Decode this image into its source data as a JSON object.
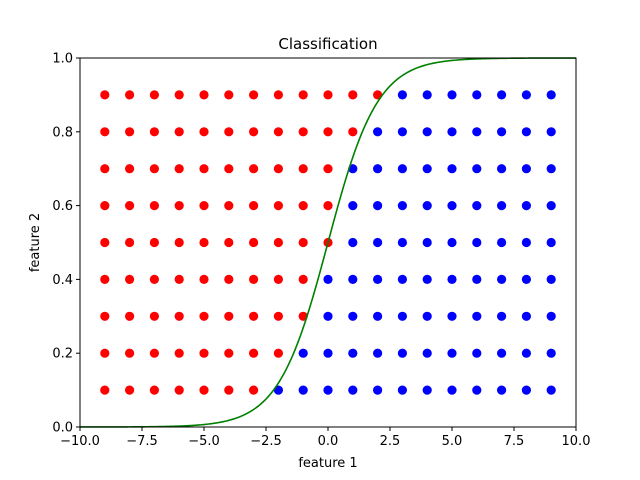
{
  "chart_data": {
    "type": "scatter",
    "title": "Classification",
    "xlabel": "feature 1",
    "ylabel": "feature 2",
    "xlim": [
      -10,
      10
    ],
    "ylim": [
      0,
      1
    ],
    "xticks": [
      -10,
      -7.5,
      -5,
      -2.5,
      0,
      2.5,
      5,
      7.5,
      10
    ],
    "xtick_labels": [
      "−10.0",
      "−7.5",
      "−5.0",
      "−2.5",
      "0.0",
      "2.5",
      "5.0",
      "7.5",
      "10.0"
    ],
    "yticks": [
      0,
      0.2,
      0.4,
      0.6,
      0.8,
      1.0
    ],
    "ytick_labels": [
      "0.0",
      "0.2",
      "0.4",
      "0.6",
      "0.8",
      "1.0"
    ],
    "grid": false,
    "x_grid": [
      -9,
      -8,
      -7,
      -6,
      -5,
      -4,
      -3,
      -2,
      -1,
      0,
      1,
      2,
      3,
      4,
      5,
      6,
      7,
      8,
      9
    ],
    "y_grid": [
      0.1,
      0.2,
      0.3,
      0.4,
      0.5,
      0.6,
      0.7,
      0.8,
      0.9
    ],
    "series": [
      {
        "class_rule": "y >= sigmoid(x)",
        "color": "#ff0000"
      },
      {
        "class_rule": "y < sigmoid(x)",
        "color": "#0000ff"
      }
    ],
    "curve": {
      "type": "sigmoid",
      "function": "1/(1+exp(-x))",
      "color": "#008000"
    }
  }
}
